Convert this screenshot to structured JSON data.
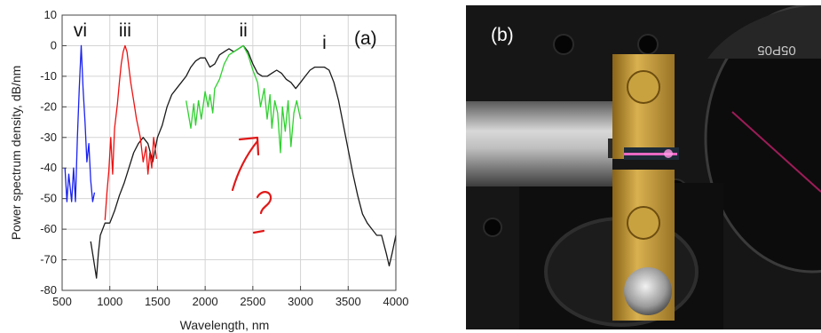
{
  "chart_data": {
    "type": "line",
    "panel_label": "(a)",
    "xlabel": "Wavelength, nm",
    "ylabel": "Power spectrum density, dB/nm",
    "xlim": [
      500,
      4000
    ],
    "ylim": [
      -80,
      10
    ],
    "x_ticks": [
      500,
      1000,
      1500,
      2000,
      2500,
      3000,
      3500,
      4000
    ],
    "y_ticks": [
      10,
      0,
      -10,
      -20,
      -30,
      -40,
      -50,
      -60,
      -70,
      -80
    ],
    "grid": true,
    "series": [
      {
        "name": "i",
        "color": "#1a1a1a",
        "points": [
          [
            800,
            -64
          ],
          [
            830,
            -70
          ],
          [
            860,
            -76
          ],
          [
            880,
            -68
          ],
          [
            900,
            -62
          ],
          [
            950,
            -58
          ],
          [
            1000,
            -58
          ],
          [
            1050,
            -54
          ],
          [
            1100,
            -49
          ],
          [
            1150,
            -45
          ],
          [
            1200,
            -40
          ],
          [
            1250,
            -35
          ],
          [
            1300,
            -32
          ],
          [
            1350,
            -30
          ],
          [
            1400,
            -32
          ],
          [
            1450,
            -38
          ],
          [
            1500,
            -30
          ],
          [
            1550,
            -26
          ],
          [
            1600,
            -20
          ],
          [
            1650,
            -16
          ],
          [
            1700,
            -14
          ],
          [
            1750,
            -12
          ],
          [
            1800,
            -10
          ],
          [
            1850,
            -7
          ],
          [
            1900,
            -5
          ],
          [
            1950,
            -4
          ],
          [
            2000,
            -4
          ],
          [
            2050,
            -7
          ],
          [
            2100,
            -6
          ],
          [
            2150,
            -3
          ],
          [
            2200,
            -2
          ],
          [
            2250,
            -1
          ],
          [
            2300,
            -2
          ],
          [
            2350,
            -1
          ],
          [
            2400,
            0
          ],
          [
            2450,
            -2
          ],
          [
            2500,
            -6
          ],
          [
            2550,
            -9
          ],
          [
            2600,
            -10
          ],
          [
            2650,
            -10
          ],
          [
            2700,
            -9
          ],
          [
            2750,
            -8
          ],
          [
            2800,
            -9
          ],
          [
            2850,
            -11
          ],
          [
            2900,
            -12
          ],
          [
            2950,
            -14
          ],
          [
            3000,
            -12
          ],
          [
            3050,
            -10
          ],
          [
            3100,
            -8
          ],
          [
            3150,
            -7
          ],
          [
            3200,
            -7
          ],
          [
            3250,
            -7
          ],
          [
            3300,
            -8
          ],
          [
            3350,
            -12
          ],
          [
            3400,
            -18
          ],
          [
            3450,
            -26
          ],
          [
            3500,
            -34
          ],
          [
            3550,
            -42
          ],
          [
            3600,
            -49
          ],
          [
            3650,
            -55
          ],
          [
            3700,
            -58
          ],
          [
            3750,
            -60
          ],
          [
            3800,
            -62
          ],
          [
            3850,
            -62
          ],
          [
            3900,
            -68
          ],
          [
            3930,
            -72
          ],
          [
            3960,
            -68
          ],
          [
            4000,
            -62
          ]
        ]
      },
      {
        "name": "ii",
        "color": "#2fd12f",
        "points": [
          [
            1800,
            -18
          ],
          [
            1850,
            -27
          ],
          [
            1880,
            -19
          ],
          [
            1900,
            -26
          ],
          [
            1930,
            -18
          ],
          [
            1960,
            -24
          ],
          [
            2000,
            -15
          ],
          [
            2030,
            -20
          ],
          [
            2050,
            -16
          ],
          [
            2080,
            -22
          ],
          [
            2100,
            -14
          ],
          [
            2150,
            -11
          ],
          [
            2200,
            -6
          ],
          [
            2250,
            -3
          ],
          [
            2300,
            -2
          ],
          [
            2350,
            -1
          ],
          [
            2400,
            0
          ],
          [
            2450,
            -3
          ],
          [
            2500,
            -8
          ],
          [
            2550,
            -12
          ],
          [
            2580,
            -20
          ],
          [
            2620,
            -14
          ],
          [
            2650,
            -24
          ],
          [
            2680,
            -16
          ],
          [
            2700,
            -27
          ],
          [
            2730,
            -18
          ],
          [
            2760,
            -22
          ],
          [
            2790,
            -35
          ],
          [
            2810,
            -20
          ],
          [
            2840,
            -28
          ],
          [
            2870,
            -18
          ],
          [
            2900,
            -33
          ],
          [
            2930,
            -22
          ],
          [
            2960,
            -18
          ],
          [
            3000,
            -24
          ]
        ]
      },
      {
        "name": "iii",
        "color": "#ee1111",
        "points": [
          [
            950,
            -57
          ],
          [
            970,
            -48
          ],
          [
            990,
            -41
          ],
          [
            1010,
            -30
          ],
          [
            1030,
            -42
          ],
          [
            1050,
            -27
          ],
          [
            1080,
            -19
          ],
          [
            1100,
            -12
          ],
          [
            1120,
            -6
          ],
          [
            1140,
            -2
          ],
          [
            1160,
            0
          ],
          [
            1180,
            -2
          ],
          [
            1200,
            -7
          ],
          [
            1220,
            -12
          ],
          [
            1250,
            -18
          ],
          [
            1280,
            -24
          ],
          [
            1320,
            -30
          ],
          [
            1350,
            -38
          ],
          [
            1380,
            -33
          ],
          [
            1400,
            -42
          ],
          [
            1420,
            -35
          ],
          [
            1440,
            -40
          ],
          [
            1460,
            -30
          ],
          [
            1490,
            -37
          ]
        ]
      },
      {
        "name": "vi",
        "color": "#1a22ee",
        "points": [
          [
            530,
            -40
          ],
          [
            550,
            -51
          ],
          [
            570,
            -42
          ],
          [
            600,
            -51
          ],
          [
            620,
            -40
          ],
          [
            640,
            -51
          ],
          [
            660,
            -30
          ],
          [
            680,
            -14
          ],
          [
            700,
            0
          ],
          [
            720,
            -14
          ],
          [
            740,
            -25
          ],
          [
            760,
            -38
          ],
          [
            780,
            -32
          ],
          [
            800,
            -44
          ],
          [
            820,
            -51
          ],
          [
            840,
            -48
          ]
        ]
      }
    ]
  },
  "photo": {
    "panel_label": "(b)",
    "lens_text": "05P05"
  }
}
